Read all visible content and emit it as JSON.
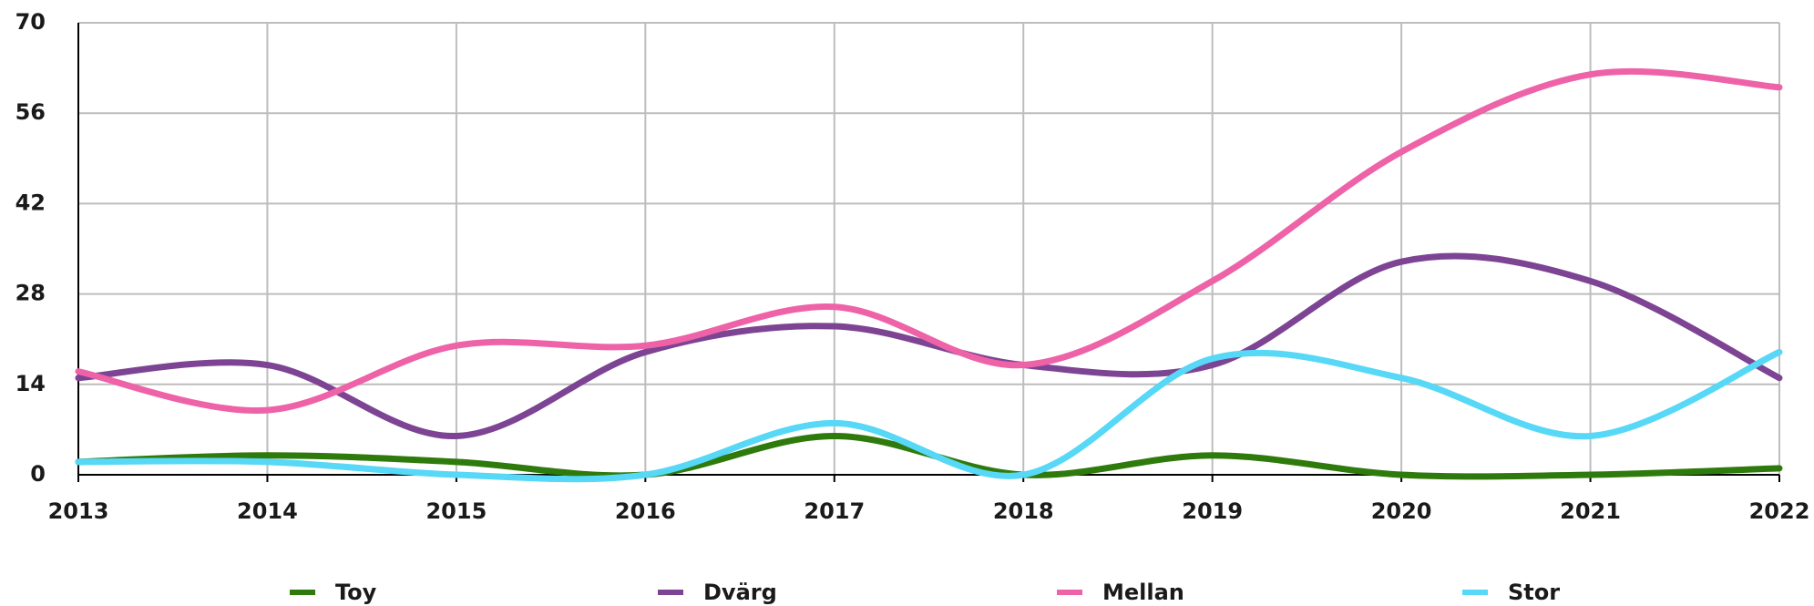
{
  "chart_data": {
    "type": "line",
    "x": [
      2013,
      2014,
      2015,
      2016,
      2017,
      2018,
      2019,
      2020,
      2021,
      2022
    ],
    "xlim": [
      2013,
      2022
    ],
    "xticks": [
      2013,
      2014,
      2015,
      2016,
      2017,
      2018,
      2019,
      2020,
      2021,
      2022
    ],
    "ylim": [
      0,
      70
    ],
    "yticks": [
      0,
      14,
      28,
      42,
      56,
      70
    ],
    "grid": true,
    "legend": "bottom",
    "series": [
      {
        "name": "Toy",
        "color": "#2f7a0c",
        "values": [
          2,
          3,
          2,
          0,
          6,
          0,
          3,
          0,
          0,
          1
        ]
      },
      {
        "name": "Dvärg",
        "color": "#7d4494",
        "values": [
          15,
          17,
          6,
          19,
          23,
          17,
          17,
          33,
          30,
          15
        ]
      },
      {
        "name": "Mellan",
        "color": "#ee62a8",
        "values": [
          16,
          10,
          20,
          20,
          26,
          17,
          30,
          50,
          62,
          60
        ]
      },
      {
        "name": "Stor",
        "color": "#56d8f6",
        "values": [
          2,
          2,
          0,
          0,
          8,
          0,
          18,
          15,
          6,
          19
        ]
      }
    ]
  }
}
